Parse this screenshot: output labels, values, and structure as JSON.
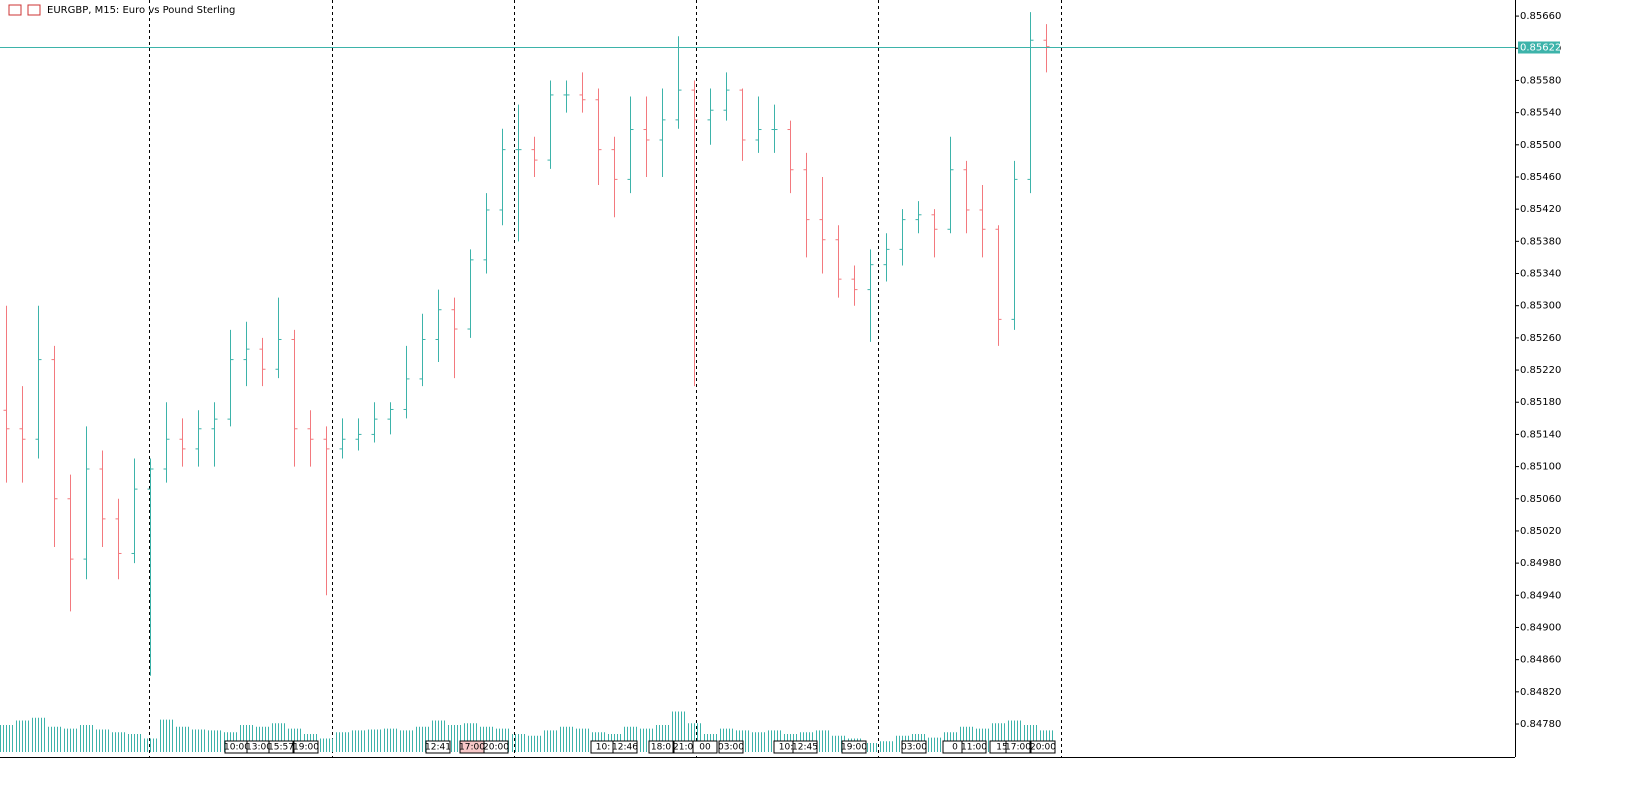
{
  "chart_data": {
    "type": "ohlc",
    "title": "EURGBP, M15:  Euro vs Pound Sterling",
    "ohlc": [
      [
        0.8517,
        0.853,
        0.8508,
        0.85147
      ],
      [
        0.85147,
        0.852,
        0.8508,
        0.85134
      ],
      [
        0.85134,
        0.853,
        0.8511,
        0.85233
      ],
      [
        0.85233,
        0.8525,
        0.85,
        0.8506
      ],
      [
        0.8506,
        0.8509,
        0.8492,
        0.84985
      ],
      [
        0.84985,
        0.8515,
        0.8496,
        0.85097
      ],
      [
        0.85097,
        0.8512,
        0.85,
        0.85035
      ],
      [
        0.85035,
        0.8506,
        0.8496,
        0.84992
      ],
      [
        0.84992,
        0.8511,
        0.8498,
        0.85072
      ],
      [
        0.85072,
        0.8511,
        0.8484,
        0.85097
      ],
      [
        0.85097,
        0.8518,
        0.8508,
        0.85134
      ],
      [
        0.85134,
        0.8516,
        0.851,
        0.85122
      ],
      [
        0.85122,
        0.8517,
        0.851,
        0.85147
      ],
      [
        0.85147,
        0.8518,
        0.851,
        0.85159
      ],
      [
        0.85159,
        0.8527,
        0.8515,
        0.85233
      ],
      [
        0.85233,
        0.8528,
        0.852,
        0.85246
      ],
      [
        0.85246,
        0.8526,
        0.852,
        0.85221
      ],
      [
        0.85221,
        0.8531,
        0.8521,
        0.85258
      ],
      [
        0.85258,
        0.8527,
        0.851,
        0.85147
      ],
      [
        0.85147,
        0.8517,
        0.851,
        0.85134
      ],
      [
        0.85134,
        0.8515,
        0.8494,
        0.85122
      ],
      [
        0.85122,
        0.8516,
        0.8511,
        0.85134
      ],
      [
        0.85134,
        0.8516,
        0.8512,
        0.8514
      ],
      [
        0.8514,
        0.8518,
        0.8513,
        0.85159
      ],
      [
        0.85159,
        0.8518,
        0.8514,
        0.85171
      ],
      [
        0.85171,
        0.8525,
        0.8516,
        0.85209
      ],
      [
        0.85209,
        0.8529,
        0.852,
        0.85258
      ],
      [
        0.85258,
        0.8532,
        0.8523,
        0.85295
      ],
      [
        0.85295,
        0.8531,
        0.8521,
        0.85271
      ],
      [
        0.85271,
        0.8537,
        0.8526,
        0.85357
      ],
      [
        0.85357,
        0.8544,
        0.8534,
        0.85419
      ],
      [
        0.85419,
        0.8552,
        0.854,
        0.85494
      ],
      [
        0.85494,
        0.8555,
        0.8538,
        0.85494
      ],
      [
        0.85494,
        0.8551,
        0.8546,
        0.85481
      ],
      [
        0.85481,
        0.8558,
        0.8547,
        0.85562
      ],
      [
        0.85562,
        0.8558,
        0.8554,
        0.85562
      ],
      [
        0.85562,
        0.8559,
        0.8554,
        0.85556
      ],
      [
        0.85556,
        0.8557,
        0.8545,
        0.85494
      ],
      [
        0.85494,
        0.8551,
        0.8541,
        0.85457
      ],
      [
        0.85457,
        0.8556,
        0.8544,
        0.85519
      ],
      [
        0.85519,
        0.8556,
        0.8546,
        0.85506
      ],
      [
        0.85506,
        0.8557,
        0.8546,
        0.85531
      ],
      [
        0.85531,
        0.85635,
        0.8552,
        0.85568
      ],
      [
        0.85568,
        0.8558,
        0.852,
        0.85531
      ],
      [
        0.85531,
        0.8557,
        0.855,
        0.85543
      ],
      [
        0.85543,
        0.8559,
        0.8553,
        0.85568
      ],
      [
        0.85568,
        0.8557,
        0.8548,
        0.85506
      ],
      [
        0.85506,
        0.8556,
        0.8549,
        0.85519
      ],
      [
        0.85519,
        0.8555,
        0.8549,
        0.85519
      ],
      [
        0.85519,
        0.8553,
        0.8544,
        0.85469
      ],
      [
        0.85469,
        0.8549,
        0.8536,
        0.85407
      ],
      [
        0.85407,
        0.8546,
        0.8534,
        0.85382
      ],
      [
        0.85382,
        0.854,
        0.8531,
        0.85333
      ],
      [
        0.85333,
        0.8535,
        0.853,
        0.8532
      ],
      [
        0.8532,
        0.8537,
        0.85255,
        0.85351
      ],
      [
        0.85351,
        0.8539,
        0.8533,
        0.8537
      ],
      [
        0.8537,
        0.8542,
        0.8535,
        0.85407
      ],
      [
        0.85407,
        0.8543,
        0.8539,
        0.85413
      ],
      [
        0.85413,
        0.8542,
        0.8536,
        0.85395
      ],
      [
        0.85395,
        0.8551,
        0.8539,
        0.85469
      ],
      [
        0.85469,
        0.8548,
        0.8539,
        0.85419
      ],
      [
        0.85419,
        0.8545,
        0.8536,
        0.85395
      ],
      [
        0.85395,
        0.854,
        0.8525,
        0.85283
      ],
      [
        0.85283,
        0.8548,
        0.8527,
        0.85457
      ],
      [
        0.85457,
        0.85665,
        0.8544,
        0.8563
      ],
      [
        0.8563,
        0.8565,
        0.8559,
        0.85622
      ]
    ],
    "volumes": [
      30,
      35,
      38,
      28,
      26,
      30,
      25,
      22,
      20,
      15,
      36,
      28,
      25,
      24,
      22,
      30,
      28,
      32,
      26,
      20,
      15,
      22,
      24,
      25,
      26,
      24,
      28,
      35,
      30,
      32,
      28,
      26,
      20,
      18,
      24,
      28,
      26,
      22,
      20,
      28,
      26,
      30,
      45,
      32,
      20,
      26,
      24,
      22,
      24,
      20,
      22,
      24,
      18,
      15,
      10,
      12,
      18,
      20,
      16,
      22,
      28,
      26,
      32,
      35,
      30,
      24
    ],
    "volume_ylim": [
      0,
      50
    ],
    "up_color": "#3db3aa",
    "down_color": "#f3797e",
    "volume_color": "#3db3aa",
    "ylim": [
      0.84739,
      0.8568
    ],
    "yticks": [
      {
        "value": 0.8566,
        "label": "0.85660"
      },
      {
        "value": 0.8562,
        "label": "0.85620"
      },
      {
        "value": 0.8558,
        "label": "0.85580"
      },
      {
        "value": 0.8554,
        "label": "0.85540"
      },
      {
        "value": 0.855,
        "label": "0.85500"
      },
      {
        "value": 0.8546,
        "label": "0.85460"
      },
      {
        "value": 0.8542,
        "label": "0.85420"
      },
      {
        "value": 0.8538,
        "label": "0.85380"
      },
      {
        "value": 0.8534,
        "label": "0.85340"
      },
      {
        "value": 0.853,
        "label": "0.85300"
      },
      {
        "value": 0.8526,
        "label": "0.85260"
      },
      {
        "value": 0.8522,
        "label": "0.85220"
      },
      {
        "value": 0.8518,
        "label": "0.85180"
      },
      {
        "value": 0.8514,
        "label": "0.85140"
      },
      {
        "value": 0.851,
        "label": "0.85100"
      },
      {
        "value": 0.8506,
        "label": "0.85060"
      },
      {
        "value": 0.8502,
        "label": "0.85020"
      },
      {
        "value": 0.8498,
        "label": "0.84980"
      },
      {
        "value": 0.8494,
        "label": "0.84940"
      },
      {
        "value": 0.849,
        "label": "0.84900"
      },
      {
        "value": 0.8486,
        "label": "0.84860"
      },
      {
        "value": 0.8482,
        "label": "0.84820"
      },
      {
        "value": 0.8478,
        "label": "0.84780"
      }
    ],
    "bid": {
      "value": 0.85622,
      "label": "0.85622"
    },
    "time_labels": [
      "10:00",
      "13:00",
      "15:57",
      "19:00",
      "12:41",
      "17:00",
      "20:00",
      "10:",
      "12:46",
      "18:0",
      "21:00",
      "00",
      "03:00",
      "10:",
      "12:45",
      "19:00",
      "03:00",
      "0",
      "11:00",
      "15",
      "17:00",
      "20:00"
    ]
  }
}
